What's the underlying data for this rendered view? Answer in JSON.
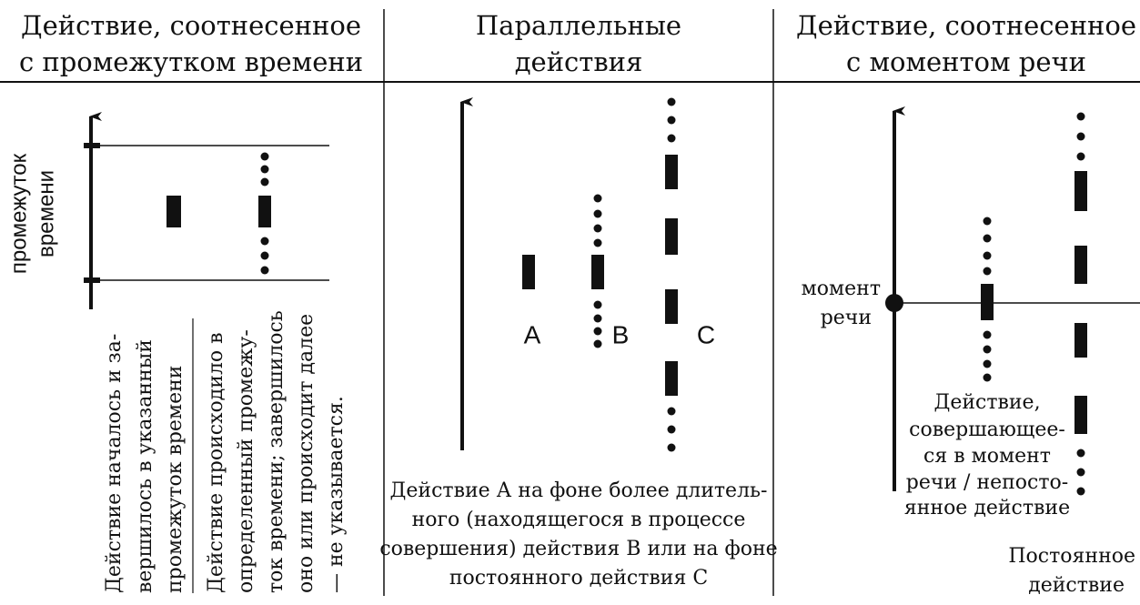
{
  "columns": [
    {
      "title": [
        "Действие, соотнесенное",
        "с промежутком времени"
      ],
      "axis_label": [
        "промежуток",
        "времени"
      ],
      "notes": [
        [
          "Действие началось и за-",
          "вершилось в указанный",
          "промежуток времени"
        ],
        [
          "Действие происходило в",
          "определенный промежу-",
          "ток времени; завершилось",
          "оно или происходит далее",
          "— не указывается."
        ]
      ]
    },
    {
      "title": [
        "Параллельные",
        "действия"
      ],
      "markers": [
        "А",
        "В",
        "С"
      ],
      "caption": [
        "Действие А на фоне более длитель-",
        "ного (находящегося в процессе",
        "совершения) действия В или на фоне",
        "постоянного действия С"
      ]
    },
    {
      "title": [
        "Действие, соотнесенное",
        "с моментом речи"
      ],
      "point_label": [
        "момент",
        "речи"
      ],
      "caption": [
        "Действие,",
        "совершающее-",
        "ся в момент",
        "речи / непосто-",
        "янное действие"
      ],
      "caption2": [
        "Постоянное",
        "действие"
      ]
    }
  ]
}
